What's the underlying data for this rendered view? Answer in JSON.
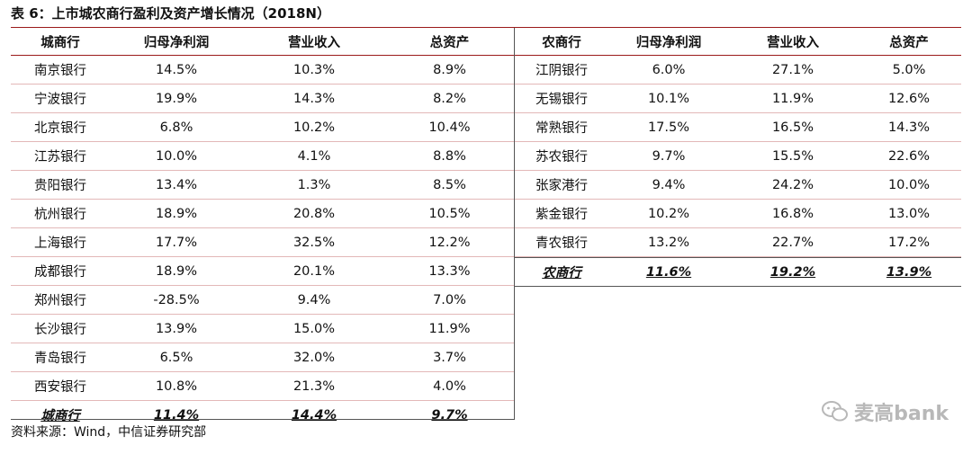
{
  "caption": "表 6：上市城农商行盈利及资产增长情况（2018N）",
  "left_table": {
    "headers": [
      "城商行",
      "归母净利润",
      "营业收入",
      "总资产"
    ],
    "rows": [
      [
        "南京银行",
        "14.5%",
        "10.3%",
        "8.9%"
      ],
      [
        "宁波银行",
        "19.9%",
        "14.3%",
        "8.2%"
      ],
      [
        "北京银行",
        "6.8%",
        "10.2%",
        "10.4%"
      ],
      [
        "江苏银行",
        "10.0%",
        "4.1%",
        "8.8%"
      ],
      [
        "贵阳银行",
        "13.4%",
        "1.3%",
        "8.5%"
      ],
      [
        "杭州银行",
        "18.9%",
        "20.8%",
        "10.5%"
      ],
      [
        "上海银行",
        "17.7%",
        "32.5%",
        "12.2%"
      ],
      [
        "成都银行",
        "18.9%",
        "20.1%",
        "13.3%"
      ],
      [
        "郑州银行",
        "-28.5%",
        "9.4%",
        "7.0%"
      ],
      [
        "长沙银行",
        "13.9%",
        "15.0%",
        "11.9%"
      ],
      [
        "青岛银行",
        "6.5%",
        "32.0%",
        "3.7%"
      ],
      [
        "西安银行",
        "10.8%",
        "21.3%",
        "4.0%"
      ]
    ],
    "summary": [
      "城商行",
      "11.4%",
      "14.4%",
      "9.7%"
    ]
  },
  "right_table": {
    "headers": [
      "农商行",
      "归母净利润",
      "营业收入",
      "总资产"
    ],
    "rows": [
      [
        "江阴银行",
        "6.0%",
        "27.1%",
        "5.0%"
      ],
      [
        "无锡银行",
        "10.1%",
        "11.9%",
        "12.6%"
      ],
      [
        "常熟银行",
        "17.5%",
        "16.5%",
        "14.3%"
      ],
      [
        "苏农银行",
        "9.7%",
        "15.5%",
        "22.6%"
      ],
      [
        "张家港行",
        "9.4%",
        "24.2%",
        "10.0%"
      ],
      [
        "紫金银行",
        "10.2%",
        "16.8%",
        "13.0%"
      ],
      [
        "青农银行",
        "13.2%",
        "22.7%",
        "17.2%"
      ]
    ],
    "summary": [
      "农商行",
      "11.6%",
      "19.2%",
      "13.9%"
    ]
  },
  "source_note": "资料来源：Wind，中信证券研究部",
  "watermark": {
    "text": "麦高bank",
    "icon": "wechat-icon",
    "color": "#b8b8b8"
  },
  "colors": {
    "rule": "#9b1b1b",
    "row_line": "#e3b8b8"
  }
}
